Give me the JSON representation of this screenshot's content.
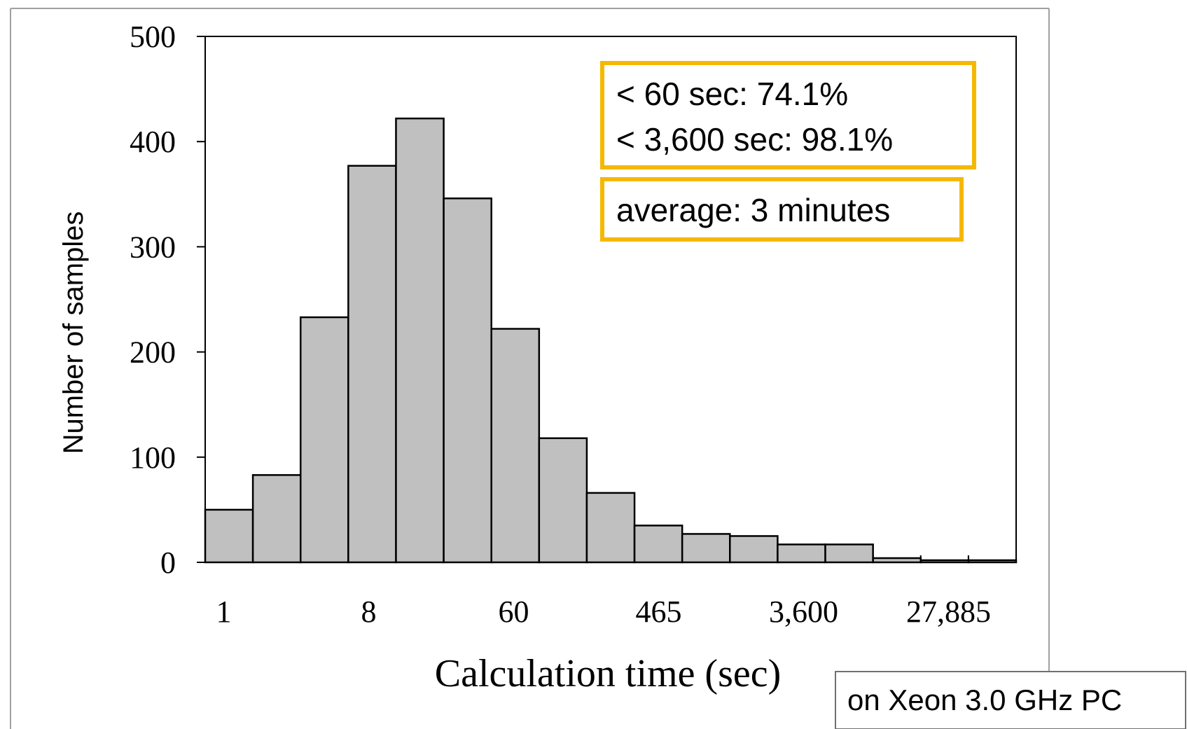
{
  "chart_data": {
    "type": "bar",
    "title": "",
    "xlabel": "Calculation time (sec)",
    "ylabel": "Number of samples",
    "ylim": [
      0,
      500
    ],
    "y_ticks": [
      "0",
      "100",
      "200",
      "300",
      "400",
      "500"
    ],
    "x_tick_labels": [
      "1",
      "8",
      "60",
      "465",
      "3,600",
      "27,885"
    ],
    "values": [
      50,
      83,
      233,
      377,
      422,
      346,
      222,
      118,
      66,
      35,
      27,
      25,
      17,
      17,
      4,
      2,
      2
    ],
    "bar_color": "#c0c0c0",
    "grid": false,
    "legend": "none",
    "annotations": {
      "box1_line1": "< 60 sec: 74.1%",
      "box1_line2": "< 3,600 sec: 98.1%",
      "box2": "average: 3 minutes",
      "box_border_color": "#f5b800"
    }
  },
  "footnote": "on Xeon 3.0 GHz PC"
}
